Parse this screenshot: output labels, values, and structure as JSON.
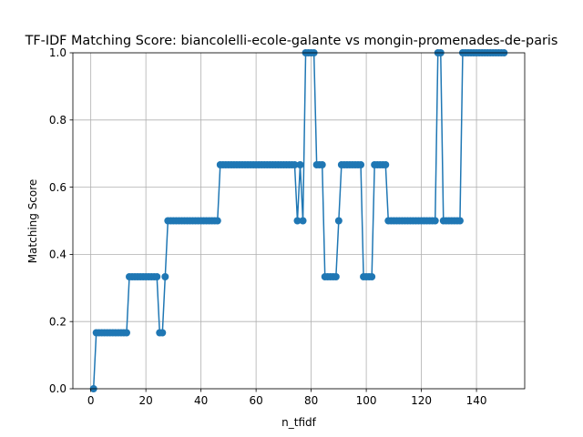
{
  "chart_data": {
    "type": "line",
    "title": "TF-IDF Matching Score: biancolelli-ecole-galante vs mongin-promenades-de-paris",
    "xlabel": "n_tfidf",
    "ylabel": "Matching Score",
    "xlim": [
      -6.5,
      157.5
    ],
    "ylim": [
      0,
      1
    ],
    "xticks": [
      0,
      20,
      40,
      60,
      80,
      100,
      120,
      140
    ],
    "yticks": [
      0.0,
      0.2,
      0.4,
      0.6,
      0.8,
      1.0
    ],
    "xtick_labels": [
      "0",
      "20",
      "40",
      "60",
      "80",
      "100",
      "120",
      "140"
    ],
    "ytick_labels": [
      "0.0",
      "0.2",
      "0.4",
      "0.6",
      "0.8",
      "1.0"
    ],
    "grid": true,
    "marker": "circle",
    "color": "#1f77b4",
    "series": [
      {
        "x": [
          1,
          2,
          3,
          4,
          5,
          6,
          7,
          8,
          9,
          10,
          11,
          12,
          13,
          14,
          15,
          16,
          17,
          18,
          19,
          20,
          21,
          22,
          23,
          24,
          25,
          26,
          27,
          28,
          29,
          30,
          31,
          32,
          33,
          34,
          35,
          36,
          37,
          38,
          39,
          40,
          41,
          42,
          43,
          44,
          45,
          46,
          47,
          48,
          49,
          50,
          51,
          52,
          53,
          54,
          55,
          56,
          57,
          58,
          59,
          60,
          61,
          62,
          63,
          64,
          65,
          66,
          67,
          68,
          69,
          70,
          71,
          72,
          73,
          74,
          75,
          76,
          77,
          78,
          79,
          80,
          81,
          82,
          83,
          84,
          85,
          86,
          87,
          88,
          89,
          90,
          91,
          92,
          93,
          94,
          95,
          96,
          97,
          98,
          99,
          100,
          101,
          102,
          103,
          104,
          105,
          106,
          107,
          108,
          109,
          110,
          111,
          112,
          113,
          114,
          115,
          116,
          117,
          118,
          119,
          120,
          121,
          122,
          123,
          124,
          125,
          126,
          127,
          128,
          129,
          130,
          131,
          132,
          133,
          134,
          135,
          136,
          137,
          138,
          139,
          140,
          141,
          142,
          143,
          144,
          145,
          146,
          147,
          148,
          149,
          150
        ],
        "y": [
          0,
          0.1667,
          0.1667,
          0.1667,
          0.1667,
          0.1667,
          0.1667,
          0.1667,
          0.1667,
          0.1667,
          0.1667,
          0.1667,
          0.1667,
          0.3333,
          0.3333,
          0.3333,
          0.3333,
          0.3333,
          0.3333,
          0.3333,
          0.3333,
          0.3333,
          0.3333,
          0.3333,
          0.1667,
          0.1667,
          0.3333,
          0.5,
          0.5,
          0.5,
          0.5,
          0.5,
          0.5,
          0.5,
          0.5,
          0.5,
          0.5,
          0.5,
          0.5,
          0.5,
          0.5,
          0.5,
          0.5,
          0.5,
          0.5,
          0.5,
          0.6667,
          0.6667,
          0.6667,
          0.6667,
          0.6667,
          0.6667,
          0.6667,
          0.6667,
          0.6667,
          0.6667,
          0.6667,
          0.6667,
          0.6667,
          0.6667,
          0.6667,
          0.6667,
          0.6667,
          0.6667,
          0.6667,
          0.6667,
          0.6667,
          0.6667,
          0.6667,
          0.6667,
          0.6667,
          0.6667,
          0.6667,
          0.6667,
          0.5,
          0.6667,
          0.5,
          1,
          1,
          1,
          1,
          0.6667,
          0.6667,
          0.6667,
          0.3333,
          0.3333,
          0.3333,
          0.3333,
          0.3333,
          0.5,
          0.6667,
          0.6667,
          0.6667,
          0.6667,
          0.6667,
          0.6667,
          0.6667,
          0.6667,
          0.3333,
          0.3333,
          0.3333,
          0.3333,
          0.6667,
          0.6667,
          0.6667,
          0.6667,
          0.6667,
          0.5,
          0.5,
          0.5,
          0.5,
          0.5,
          0.5,
          0.5,
          0.5,
          0.5,
          0.5,
          0.5,
          0.5,
          0.5,
          0.5,
          0.5,
          0.5,
          0.5,
          0.5,
          1,
          1,
          0.5,
          0.5,
          0.5,
          0.5,
          0.5,
          0.5,
          0.5,
          1,
          1,
          1,
          1,
          1,
          1,
          1,
          1,
          1,
          1,
          1,
          1,
          1,
          1,
          1,
          1
        ]
      }
    ]
  }
}
